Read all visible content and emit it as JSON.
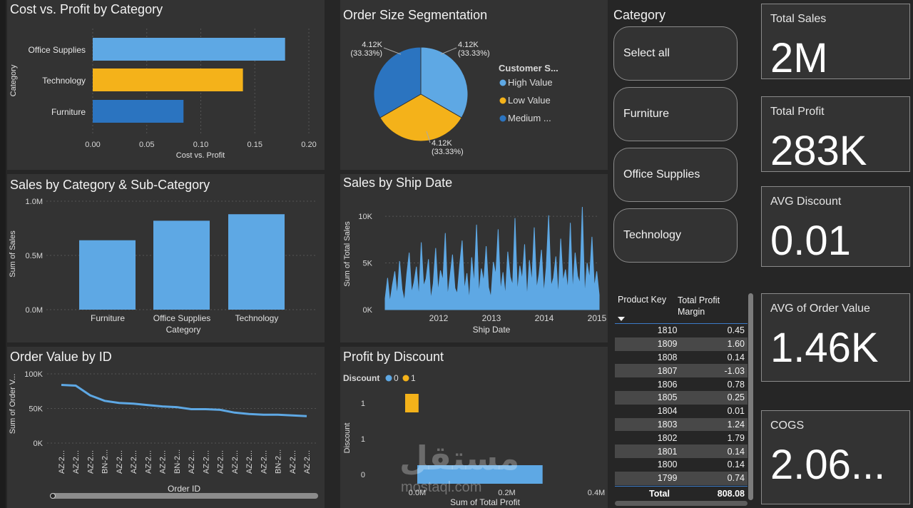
{
  "dashboard_colors": {
    "blue": "#5ea8e4",
    "dark_blue": "#2b74c0",
    "gold": "#f4b21a"
  },
  "charts": {
    "cost_profit": {
      "title": "Cost vs. Profit by Category",
      "ylabel": "Category",
      "xlabel": "Cost vs. Profit",
      "ticks": [
        "0.00",
        "0.05",
        "0.10",
        "0.15",
        "0.20"
      ]
    },
    "order_size": {
      "title": "Order Size Segmentation",
      "legend_title": "Customer S...",
      "labels": [
        "4.12K\n(33.33%)",
        "4.12K\n(33.33%)",
        "4.12K\n(33.33%)"
      ]
    },
    "sales_cat": {
      "title": "Sales by Category & Sub-Category",
      "ylabel": "Sum of Sales",
      "xlabel": "Category",
      "ticks": [
        "0.0M",
        "0.5M",
        "1.0M"
      ]
    },
    "ship_date": {
      "title": "Sales by Ship Date",
      "ylabel": "Sum of Total Sales",
      "xlabel": "Ship Date",
      "yticks": [
        "0K",
        "5K",
        "10K"
      ],
      "xticks": [
        "2012",
        "2013",
        "2014",
        "2015"
      ]
    },
    "order_value": {
      "title": "Order Value by ID",
      "ylabel": "Sum of Order V...",
      "xlabel": "Order ID",
      "yticks": [
        "0K",
        "50K",
        "100K"
      ]
    },
    "profit_discount": {
      "title": "Profit by Discount",
      "legend_title": "Discount",
      "ylabel": "Discount",
      "xlabel": "Sum of Total Profit",
      "yticks": [
        "1",
        "1",
        "0"
      ],
      "xticks": [
        "0.0M",
        "0.2M",
        "0.4M"
      ]
    }
  },
  "chart_data": [
    {
      "type": "bar",
      "orientation": "horizontal",
      "title": "Cost vs. Profit by Category",
      "categories": [
        "Office Supplies",
        "Technology",
        "Furniture"
      ],
      "values": [
        0.178,
        0.139,
        0.084
      ],
      "colors": [
        "#5ea8e4",
        "#f4b21a",
        "#2b74c0"
      ],
      "xlabel": "Cost vs. Profit",
      "ylabel": "Category",
      "xlim": [
        0,
        0.2
      ]
    },
    {
      "type": "pie",
      "title": "Order Size Segmentation",
      "categories": [
        "High Value",
        "Low Value",
        "Medium ..."
      ],
      "values": [
        4120,
        4120,
        4120
      ],
      "colors": [
        "#5ea8e4",
        "#f4b21a",
        "#2b74c0"
      ],
      "legend": "right"
    },
    {
      "type": "bar",
      "title": "Sales by Category & Sub-Category",
      "categories": [
        "Furniture",
        "Office Supplies",
        "Technology"
      ],
      "values": [
        0.64,
        0.82,
        0.88
      ],
      "xlabel": "Category",
      "ylabel": "Sum of Sales",
      "ylim": [
        0,
        1.0
      ]
    },
    {
      "type": "area",
      "title": "Sales by Ship Date",
      "x_range": [
        "2011",
        "2015"
      ],
      "ylim": [
        0,
        11000
      ],
      "xlabel": "Ship Date",
      "ylabel": "Sum of Total Sales",
      "values": [
        1200,
        3400,
        800,
        2600,
        4100,
        1500,
        5200,
        2200,
        900,
        3800,
        6100,
        1800,
        2900,
        4600,
        1300,
        7200,
        2500,
        3300,
        5400,
        1100,
        2800,
        6600,
        1900,
        4200,
        3100,
        8200,
        1400,
        3600,
        5900,
        2300,
        1700,
        4800,
        7400,
        2100,
        3900,
        1000,
        5600,
        2700,
        9100,
        1600,
        4400,
        3000,
        6800,
        2400,
        1300,
        5100,
        3700,
        8600,
        2000,
        4000,
        1500,
        6200,
        3500,
        2600,
        9800,
        1800,
        4700,
        3200,
        7000,
        1200,
        5300,
        2900,
        8800,
        2200,
        3800,
        6400,
        1700,
        4500,
        10100,
        2500,
        3400,
        5700,
        1400,
        7600,
        3000,
        4300,
        2100,
        9300,
        1900,
        6100,
        3600,
        2800,
        11000,
        1500,
        5000,
        3300,
        7800,
        2400,
        4100,
        1600
      ],
      "grid": true
    },
    {
      "type": "line",
      "title": "Order Value by ID",
      "x": [
        "AZ-2...",
        "AZ-2...",
        "AZ-2...",
        "BN-2...",
        "AZ-2...",
        "AZ-2...",
        "AZ-2...",
        "AZ-2...",
        "BN-2...",
        "AZ-2...",
        "AZ-2...",
        "AZ-2...",
        "AZ-2...",
        "AZ-2...",
        "AZ-2...",
        "BN-2...",
        "AZ-2...",
        "AZ-2..."
      ],
      "values": [
        84000,
        83000,
        69000,
        61000,
        58000,
        57000,
        55000,
        53000,
        52000,
        49000,
        49000,
        48000,
        44000,
        42000,
        41000,
        41000,
        40000,
        39000
      ],
      "xlabel": "Order ID",
      "ylabel": "Sum of Order V...",
      "ylim": [
        0,
        100000
      ]
    },
    {
      "type": "bar",
      "orientation": "horizontal",
      "title": "Profit by Discount",
      "series": [
        {
          "name": "0",
          "values": [
            0,
            0,
            0.28
          ],
          "color": "#5ea8e4"
        },
        {
          "name": "1",
          "values": [
            0.03,
            0,
            0
          ],
          "color": "#f4b21a"
        }
      ],
      "categories": [
        "1",
        "1",
        "0"
      ],
      "xlabel": "Sum of Total Profit",
      "ylabel": "Discount",
      "xlim": [
        0,
        0.4
      ],
      "legend": "top-left"
    }
  ],
  "slicer": {
    "title": "Category",
    "items": [
      "Select all",
      "Furniture",
      "Office Supplies",
      "Technology"
    ]
  },
  "kpis": [
    {
      "label": "Total Sales",
      "value": "2M"
    },
    {
      "label": "Total Profit",
      "value": "283K"
    },
    {
      "label": "AVG Discount",
      "value": "0.01"
    },
    {
      "label": "AVG of Order Value",
      "value": "1.46K"
    },
    {
      "label": "COGS",
      "value": "2.06..."
    }
  ],
  "table": {
    "col1": "Product Key",
    "col2": "Total Profit Margin",
    "rows": [
      [
        "1810",
        "0.45"
      ],
      [
        "1809",
        "1.60"
      ],
      [
        "1808",
        "0.14"
      ],
      [
        "1807",
        "-1.03"
      ],
      [
        "1806",
        "0.78"
      ],
      [
        "1805",
        "0.25"
      ],
      [
        "1804",
        "0.01"
      ],
      [
        "1803",
        "1.24"
      ],
      [
        "1802",
        "1.79"
      ],
      [
        "1801",
        "0.14"
      ],
      [
        "1800",
        "0.14"
      ],
      [
        "1799",
        "0.74"
      ]
    ],
    "total_label": "Total",
    "total_value": "808.08"
  },
  "watermark": {
    "arabic": "مستقل",
    "latin": "mostaql.com"
  }
}
